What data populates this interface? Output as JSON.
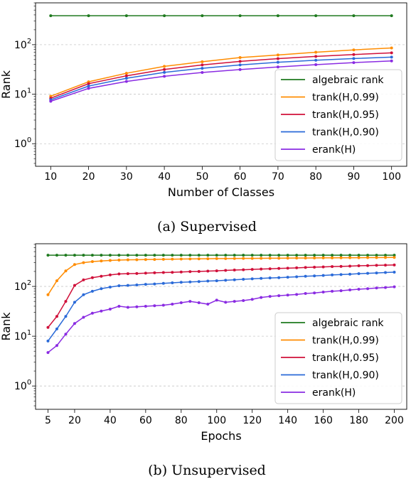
{
  "chart_data": [
    {
      "type": "line",
      "caption": "(a) Supervised",
      "xlabel": "Number of Classes",
      "ylabel": "Rank",
      "yscale": "log",
      "xlim": [
        6,
        104
      ],
      "ylim": [
        0.35,
        700
      ],
      "grid": "horizontal dashed",
      "legend_position": "center-right",
      "x": [
        10,
        20,
        30,
        40,
        50,
        60,
        70,
        80,
        90,
        100
      ],
      "x_ticks": [
        "10",
        "20",
        "30",
        "40",
        "50",
        "60",
        "70",
        "80",
        "90",
        "100"
      ],
      "y_ticks": [
        {
          "value": 1,
          "base": "10",
          "exp": "0"
        },
        {
          "value": 10,
          "base": "10",
          "exp": "1"
        },
        {
          "value": 100,
          "base": "10",
          "exp": "2"
        }
      ],
      "series": [
        {
          "name": "algebraic rank",
          "color": "#1f7a1f",
          "values": [
            384,
            384,
            384,
            384,
            384,
            384,
            384,
            384,
            384,
            384
          ]
        },
        {
          "name": "trank(H,0.99)",
          "color": "#ff8c00",
          "values": [
            9.1,
            17.8,
            26.5,
            36.5,
            45.3,
            55,
            62,
            70.5,
            78.5,
            86
          ]
        },
        {
          "name": "trank(H,0.95)",
          "color": "#d0103a",
          "values": [
            8.3,
            16.3,
            23.5,
            31.6,
            39,
            46,
            52.3,
            58,
            63.3,
            68.3
          ]
        },
        {
          "name": "trank(H,0.90)",
          "color": "#2a6ad8",
          "values": [
            7.7,
            14.6,
            21,
            27.6,
            33.3,
            39,
            44.2,
            48.5,
            52.5,
            56
          ]
        },
        {
          "name": "erank(H)",
          "color": "#8a2be2",
          "values": [
            7.2,
            13.1,
            18.1,
            23,
            27.5,
            31.5,
            35.5,
            39.5,
            43.5,
            47
          ]
        }
      ]
    },
    {
      "type": "line",
      "caption": "(b) Unsupervised",
      "xlabel": "Epochs",
      "ylabel": "Rank",
      "yscale": "log",
      "xlim": [
        -2,
        207
      ],
      "ylim": [
        0.34,
        720
      ],
      "grid": "horizontal dashed",
      "legend_position": "center-right",
      "x": [
        5,
        10,
        15,
        20,
        25,
        30,
        35,
        40,
        45,
        50,
        55,
        60,
        65,
        70,
        75,
        80,
        85,
        90,
        95,
        100,
        105,
        110,
        115,
        120,
        125,
        130,
        135,
        140,
        145,
        150,
        155,
        160,
        165,
        170,
        175,
        180,
        185,
        190,
        195,
        200
      ],
      "x_ticks": [
        "5",
        "20",
        "40",
        "60",
        "80",
        "100",
        "120",
        "140",
        "160",
        "180",
        "200"
      ],
      "y_ticks": [
        {
          "value": 1,
          "base": "10",
          "exp": "0"
        },
        {
          "value": 10,
          "base": "10",
          "exp": "1"
        },
        {
          "value": 100,
          "base": "10",
          "exp": "2"
        }
      ],
      "series": [
        {
          "name": "algebraic rank",
          "color": "#1f7a1f",
          "values": [
            423,
            423,
            423,
            423,
            423,
            423,
            423,
            423,
            423,
            423,
            423,
            423,
            423,
            423,
            423,
            423,
            423,
            423,
            423,
            423,
            423,
            423,
            423,
            423,
            423,
            423,
            423,
            423,
            423,
            423,
            423,
            423,
            423,
            423,
            423,
            423,
            423,
            423,
            423,
            423
          ]
        },
        {
          "name": "trank(H,0.99)",
          "color": "#ff8c00",
          "values": [
            68,
            130,
            205,
            275,
            300,
            315,
            325,
            332,
            338,
            342,
            344,
            346,
            348,
            351,
            353,
            355,
            357,
            358,
            360,
            362,
            363,
            364,
            365,
            366,
            367,
            368,
            369,
            370,
            371,
            372,
            373,
            374,
            375,
            376,
            377,
            378,
            379,
            380,
            381,
            382
          ]
        },
        {
          "name": "trank(H,0.95)",
          "color": "#d0103a",
          "values": [
            15,
            25,
            50,
            105,
            135,
            150,
            160,
            170,
            178,
            180,
            182,
            185,
            188,
            190,
            192,
            195,
            198,
            200,
            203,
            206,
            210,
            213,
            216,
            220,
            223,
            226,
            230,
            233,
            236,
            240,
            243,
            246,
            250,
            253,
            256,
            260,
            262,
            265,
            268,
            270
          ]
        },
        {
          "name": "trank(H,0.90)",
          "color": "#2a6ad8",
          "values": [
            8,
            14,
            25,
            48,
            68,
            80,
            90,
            97,
            103,
            105,
            107,
            110,
            112,
            115,
            118,
            121,
            123,
            125,
            128,
            130,
            133,
            136,
            139,
            142,
            145,
            148,
            150,
            153,
            156,
            160,
            163,
            166,
            170,
            173,
            176,
            180,
            183,
            186,
            190,
            193
          ]
        },
        {
          "name": "erank(H)",
          "color": "#8a2be2",
          "values": [
            4.7,
            6.5,
            11,
            18,
            24,
            29,
            32,
            35,
            40,
            38,
            39,
            40,
            41,
            42,
            44,
            47,
            50,
            47,
            44,
            53,
            48,
            50,
            52,
            55,
            60,
            63,
            65,
            67,
            69,
            72,
            74,
            77,
            80,
            82,
            85,
            88,
            90,
            93,
            95,
            98
          ]
        }
      ]
    }
  ]
}
